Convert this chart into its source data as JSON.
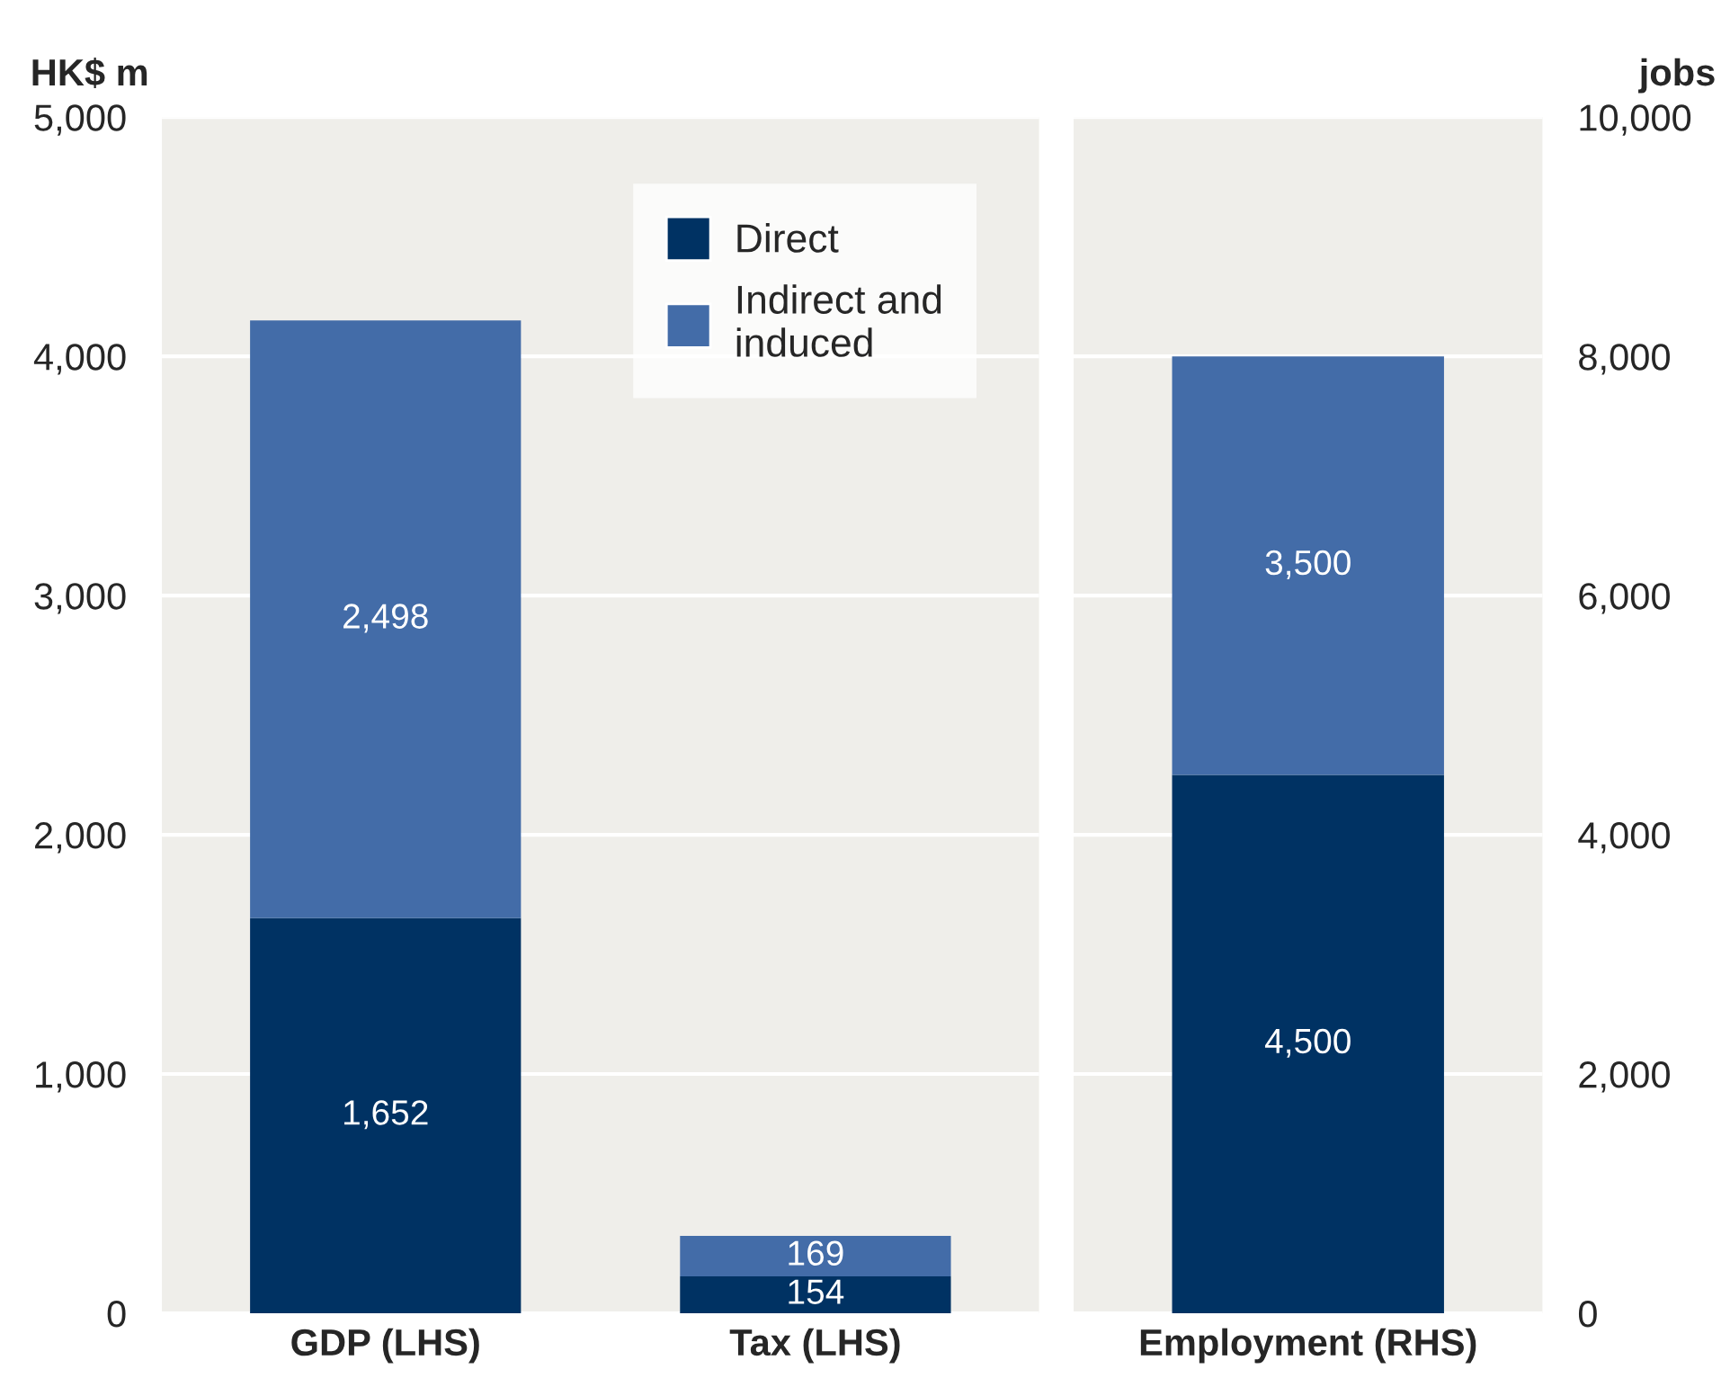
{
  "chart_data": [
    {
      "type": "bar",
      "stacked": true,
      "ylabel": "HK$ m",
      "categories": [
        "GDP (LHS)",
        "Tax (LHS)"
      ],
      "series": [
        {
          "name": "Direct",
          "color": "#003263",
          "values": [
            1652,
            154
          ],
          "value_labels": [
            "1,652",
            "154"
          ]
        },
        {
          "name": "Indirect and\ninduced",
          "color": "#436ca8",
          "values": [
            2498,
            169
          ],
          "value_labels": [
            "2,498",
            "169"
          ]
        }
      ],
      "ylim": [
        0,
        5000
      ],
      "yticks": [
        0,
        {
          "value": 1000,
          "label": "1,000"
        },
        {
          "value": 2000,
          "label": "2,000"
        },
        {
          "value": 3000,
          "label": "3,000"
        },
        {
          "value": 4000,
          "label": "4,000"
        },
        {
          "value": 5000,
          "label": "5,000"
        }
      ],
      "grid": "y",
      "legend": "top right"
    },
    {
      "type": "bar",
      "stacked": true,
      "ylabel": "jobs",
      "categories": [
        "Employment (RHS)"
      ],
      "series": [
        {
          "color": "#003263",
          "values": [
            4500
          ],
          "value_labels": [
            "4,500"
          ]
        },
        {
          "color": "#436ca8",
          "values": [
            3500
          ],
          "value_labels": [
            "3,500"
          ]
        }
      ],
      "ylim": [
        0,
        10000
      ],
      "yticks": [
        0,
        {
          "value": 2000,
          "label": "2,000"
        },
        {
          "value": 4000,
          "label": "4,000"
        },
        {
          "value": 6000,
          "label": "6,000"
        },
        {
          "value": 8000,
          "label": "8,000"
        },
        {
          "value": 10000,
          "label": "10,000"
        }
      ],
      "grid": "y"
    }
  ]
}
